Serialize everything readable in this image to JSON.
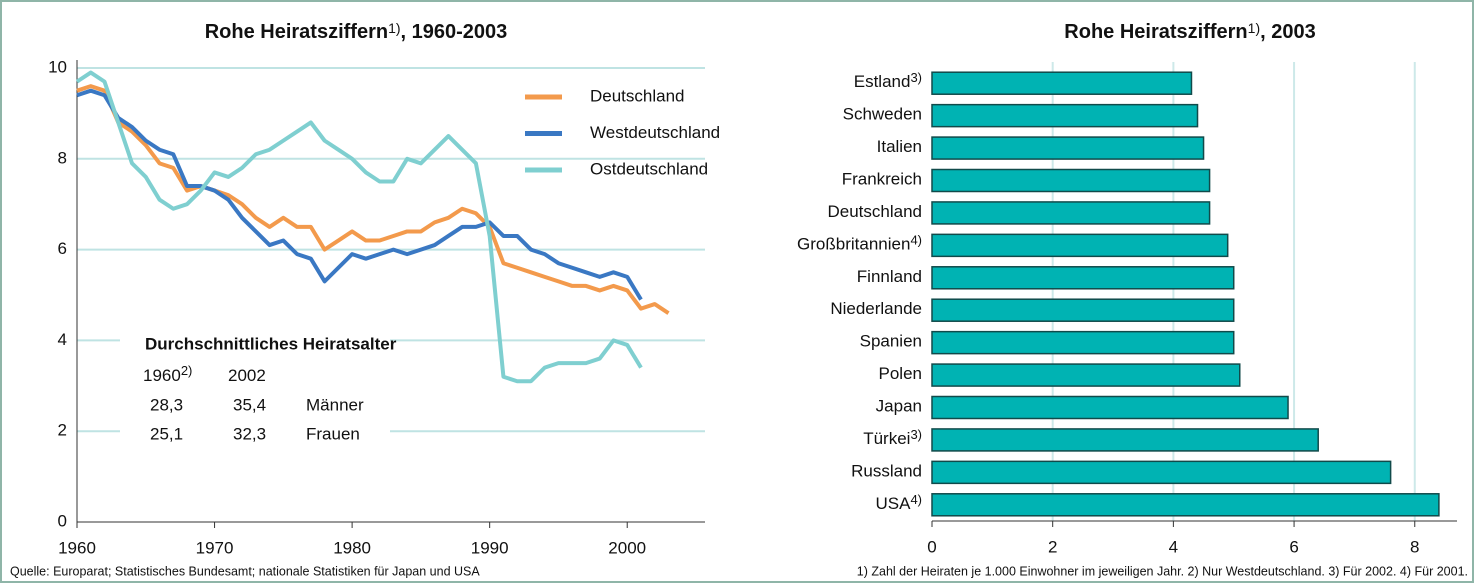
{
  "chart_data": [
    {
      "type": "line",
      "title": "Rohe Heiratsziffern",
      "title_note": "1)",
      "title_suffix": ", 1960-2003",
      "x": [
        1960,
        1961,
        1962,
        1963,
        1964,
        1965,
        1966,
        1967,
        1968,
        1969,
        1970,
        1971,
        1972,
        1973,
        1974,
        1975,
        1976,
        1977,
        1978,
        1979,
        1980,
        1981,
        1982,
        1983,
        1984,
        1985,
        1986,
        1987,
        1988,
        1989,
        1990,
        1991,
        1992,
        1993,
        1994,
        1995,
        1996,
        1997,
        1998,
        1999,
        2000,
        2001,
        2002,
        2003
      ],
      "series": [
        {
          "name": "Deutschland",
          "color": "#f39a4c",
          "values": [
            9.5,
            9.6,
            9.5,
            8.8,
            8.6,
            8.3,
            7.9,
            7.8,
            7.3,
            7.4,
            7.3,
            7.2,
            7.0,
            6.7,
            6.5,
            6.7,
            6.5,
            6.5,
            6.0,
            6.2,
            6.4,
            6.2,
            6.2,
            6.3,
            6.4,
            6.4,
            6.6,
            6.7,
            6.9,
            6.8,
            6.5,
            5.7,
            5.6,
            5.5,
            5.4,
            5.3,
            5.2,
            5.2,
            5.1,
            5.2,
            5.1,
            4.7,
            4.8,
            4.6
          ]
        },
        {
          "name": "Westdeutschland",
          "color": "#3a78c3",
          "values": [
            9.4,
            9.5,
            9.4,
            8.9,
            8.7,
            8.4,
            8.2,
            8.1,
            7.4,
            7.4,
            7.3,
            7.1,
            6.7,
            6.4,
            6.1,
            6.2,
            5.9,
            5.8,
            5.3,
            5.6,
            5.9,
            5.8,
            5.9,
            6.0,
            5.9,
            6.0,
            6.1,
            6.3,
            6.5,
            6.5,
            6.6,
            6.3,
            6.3,
            6.0,
            5.9,
            5.7,
            5.6,
            5.5,
            5.4,
            5.5,
            5.4,
            4.9,
            null,
            null
          ]
        },
        {
          "name": "Ostdeutschland",
          "color": "#7fcfd0",
          "values": [
            9.7,
            9.9,
            9.7,
            8.8,
            7.9,
            7.6,
            7.1,
            6.9,
            7.0,
            7.3,
            7.7,
            7.6,
            7.8,
            8.1,
            8.2,
            8.4,
            8.6,
            8.8,
            8.4,
            8.2,
            8.0,
            7.7,
            7.5,
            7.5,
            8.0,
            7.9,
            8.2,
            8.5,
            8.2,
            7.9,
            6.3,
            3.2,
            3.1,
            3.1,
            3.4,
            3.5,
            3.5,
            3.5,
            3.6,
            4.0,
            3.9,
            3.4,
            null,
            null
          ]
        }
      ],
      "xlim": [
        1960,
        2005
      ],
      "xticks": [
        1960,
        1970,
        1980,
        1990,
        2000
      ],
      "ylim": [
        0,
        10
      ],
      "yticks": [
        0,
        2,
        4,
        6,
        8,
        10
      ],
      "grid": true,
      "legend": "top-right",
      "inset": {
        "title": "Durchschnittliches Heiratsalter",
        "header": [
          "1960",
          "2002"
        ],
        "header_note": "2)",
        "rows": [
          [
            "28,3",
            "35,4",
            "Männer"
          ],
          [
            "25,1",
            "32,3",
            "Frauen"
          ]
        ]
      },
      "note": "Quelle: Europarat; Statistisches Bundesamt; nationale Statistiken für Japan und USA"
    },
    {
      "type": "barh",
      "title": "Rohe Heiratsziffern",
      "title_note": "1)",
      "title_suffix": ", 2003",
      "categories": [
        "Estland",
        "Schweden",
        "Italien",
        "Frankreich",
        "Deutschland",
        "Großbritannien",
        "Finnland",
        "Niederlande",
        "Spanien",
        "Polen",
        "Japan",
        "Türkei",
        "Russland",
        "USA"
      ],
      "category_notes": [
        "3)",
        null,
        null,
        null,
        null,
        "4)",
        null,
        null,
        null,
        null,
        null,
        "3)",
        null,
        "4)"
      ],
      "values": [
        4.3,
        4.4,
        4.5,
        4.6,
        4.6,
        4.9,
        5.0,
        5.0,
        5.0,
        5.1,
        5.9,
        6.4,
        7.6,
        8.4
      ],
      "color": "#00b3b3",
      "xlim": [
        0,
        8.7
      ],
      "xticks": [
        0,
        2,
        4,
        6,
        8
      ],
      "grid": true,
      "note": "1) Zahl der Heiraten je 1.000 Einwohner im jeweiligen Jahr. 2) Nur Westdeutschland. 3) Für 2002. 4) Für 2001."
    }
  ]
}
